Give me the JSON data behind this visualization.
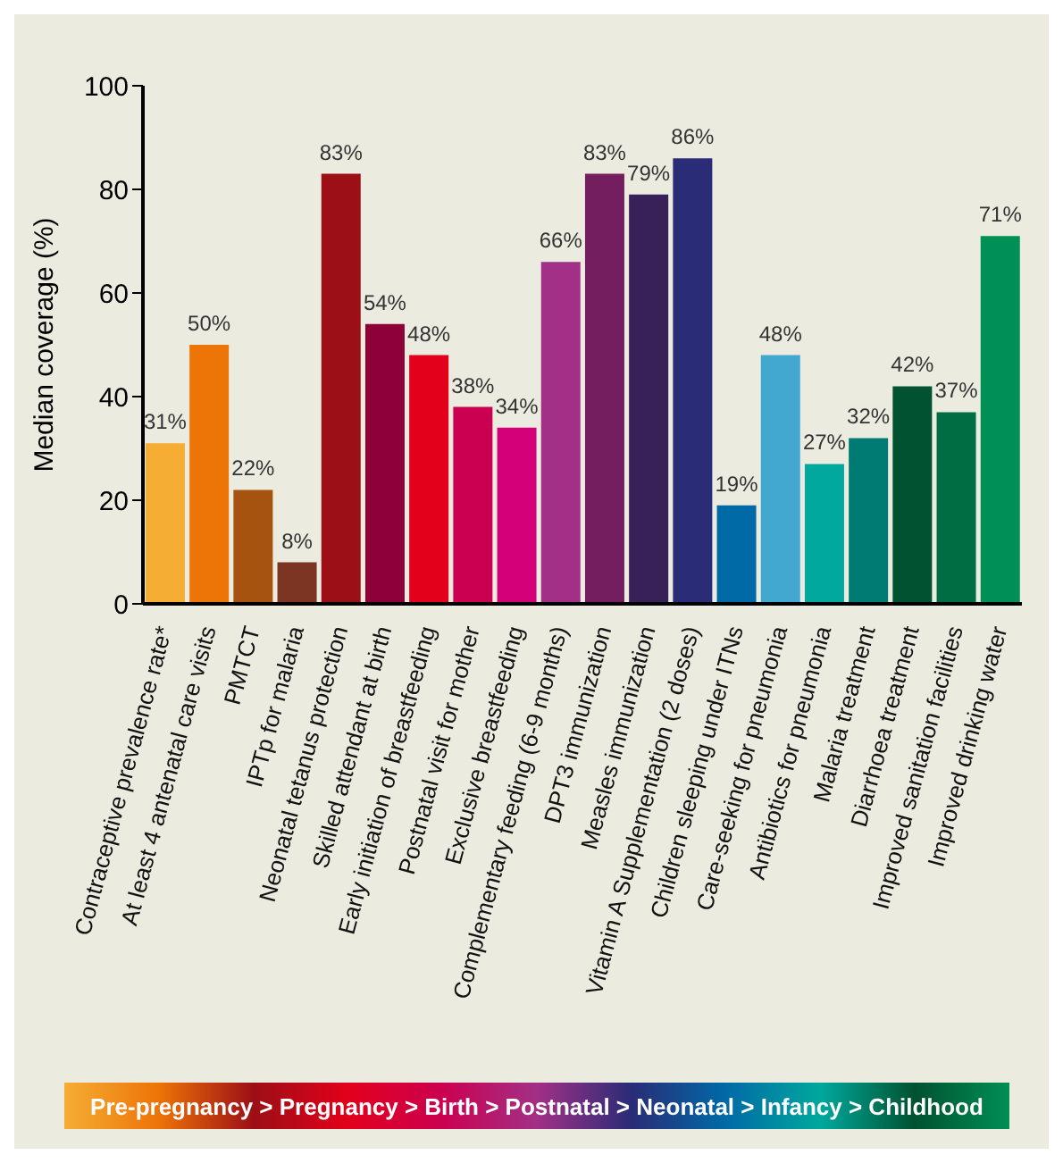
{
  "chart_data": {
    "type": "bar",
    "ylabel": "Median coverage (%)",
    "categories": [
      "Contraceptive prevalence rate*",
      "At least 4 antenatal care visits",
      "PMTCT",
      "IPTp for malaria",
      "Neonatal tetanus protection",
      "Skilled attendant at birth",
      "Early initiation of breastfeeding",
      "Postnatal visit for mother",
      "Exclusive breastfeeding",
      "Complementary feeding (6-9 months)",
      "DPT3 immunization",
      "Measles immunization",
      "Vitamin A Supplementation (2 doses)",
      "Children sleeping under ITNs",
      "Care-seeking for pneumonia",
      "Antibiotics for pneumonia",
      "Malaria treatment",
      "Diarrhoea treatment",
      "Improved sanitation facilities",
      "Improved drinking water"
    ],
    "values": [
      31,
      50,
      22,
      8,
      83,
      54,
      48,
      38,
      34,
      66,
      83,
      79,
      86,
      19,
      48,
      27,
      32,
      42,
      37,
      71
    ],
    "value_labels": [
      "31%",
      "50%",
      "22%",
      "8%",
      "83%",
      "54%",
      "48%",
      "38%",
      "34%",
      "66%",
      "83%",
      "79%",
      "86%",
      "19%",
      "48%",
      "27%",
      "32%",
      "42%",
      "37%",
      "71%"
    ],
    "colors": [
      "#f5ad33",
      "#ed7407",
      "#a5530f",
      "#7b3522",
      "#9c0f16",
      "#8e0038",
      "#e2001a",
      "#cc0051",
      "#d3007a",
      "#a23086",
      "#741e60",
      "#382058",
      "#2a2c77",
      "#006aa7",
      "#42a8d0",
      "#00a89d",
      "#007b74",
      "#005230",
      "#006e42",
      "#008f55"
    ],
    "ylim": [
      0,
      100
    ],
    "yticks": [
      0,
      20,
      40,
      60,
      80,
      100
    ],
    "grid": false,
    "annotations": [
      "Pre-pregnancy > Pregnancy > Birth > Postnatal > Neonatal > Infancy > Childhood"
    ]
  }
}
